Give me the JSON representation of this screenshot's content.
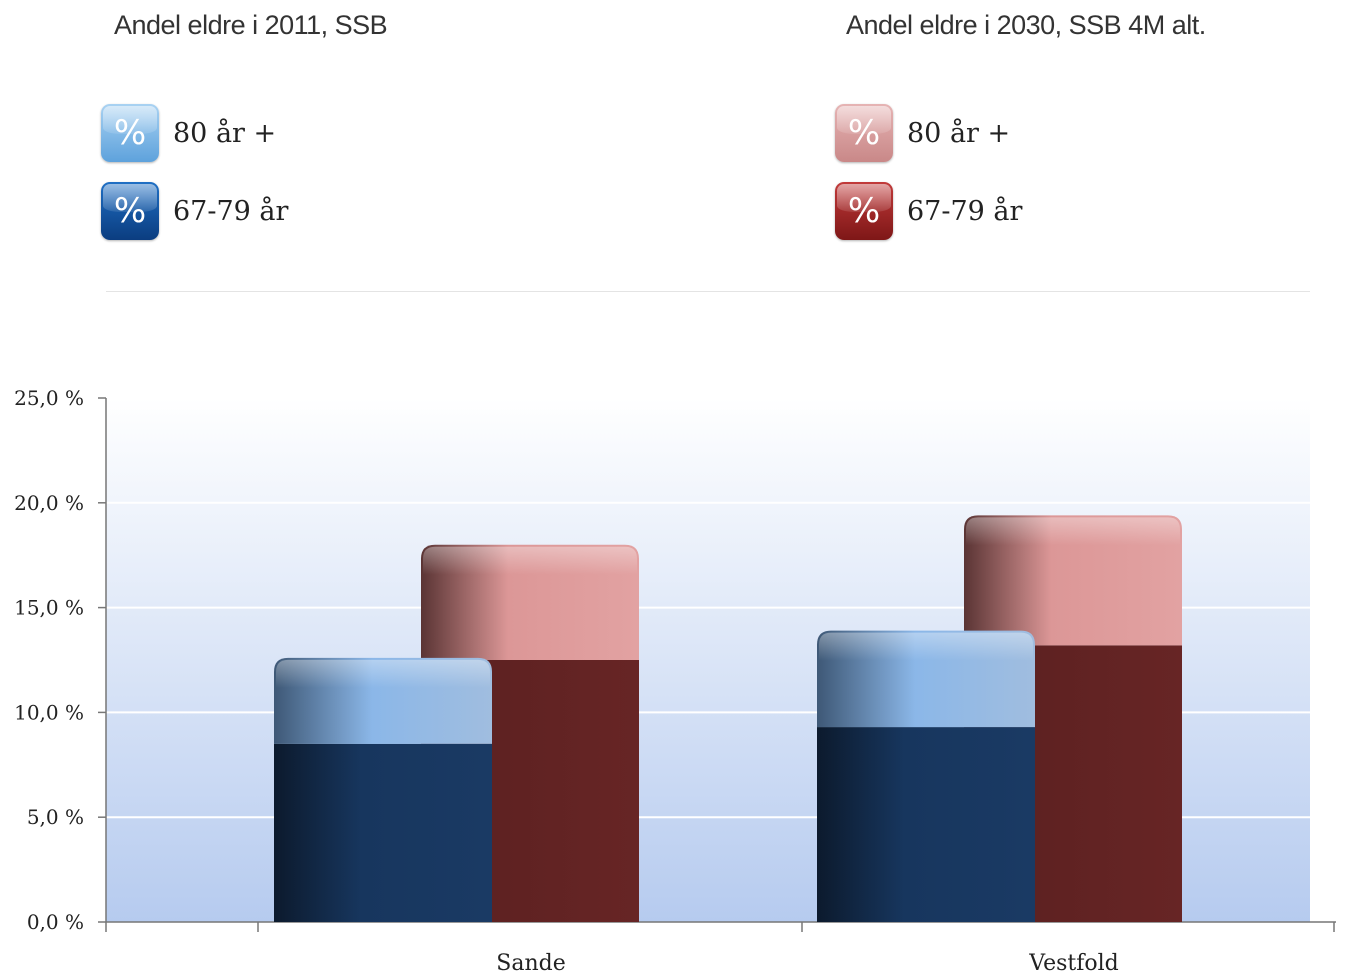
{
  "legend": {
    "left": {
      "title": "Andel eldre i 2011, SSB",
      "items": [
        {
          "icon": "percent-icon",
          "glyph": "%",
          "label": "80 år +",
          "color": "#8fb8e4"
        },
        {
          "icon": "percent-icon",
          "glyph": "%",
          "label": "67-79 år",
          "color": "#1f4f92"
        }
      ]
    },
    "right": {
      "title": "Andel eldre i 2030, SSB 4M alt.",
      "items": [
        {
          "icon": "percent-icon",
          "glyph": "%",
          "label": "80 år +",
          "color": "#e0a0a0"
        },
        {
          "icon": "percent-icon",
          "glyph": "%",
          "label": "67-79 år",
          "color": "#8a2a2a"
        }
      ]
    }
  },
  "chart_data": {
    "type": "bar",
    "stacked": true,
    "categories": [
      "Sande",
      "Vestfold"
    ],
    "series": [
      {
        "name": "67-79 år",
        "group": "Andel eldre i 2011, SSB",
        "values": [
          8.5,
          9.3
        ],
        "color": "#17365e"
      },
      {
        "name": "80 år +",
        "group": "Andel eldre i 2011, SSB",
        "values": [
          4.1,
          4.6
        ],
        "color": "#8fb8e4"
      },
      {
        "name": "67-79 år",
        "group": "Andel eldre i 2030, SSB 4M alt.",
        "values": [
          12.5,
          13.2
        ],
        "color": "#642424"
      },
      {
        "name": "80 år +",
        "group": "Andel eldre i 2030, SSB 4M alt.",
        "values": [
          5.5,
          6.2
        ],
        "color": "#e09c9c"
      }
    ],
    "ylim": [
      0,
      25
    ],
    "yticks": [
      "0,0 %",
      "5,0 %",
      "10,0 %",
      "15,0 %",
      "20,0 %",
      "25,0 %"
    ],
    "ytick_values": [
      0,
      5,
      10,
      15,
      20,
      25
    ],
    "grid": true
  }
}
